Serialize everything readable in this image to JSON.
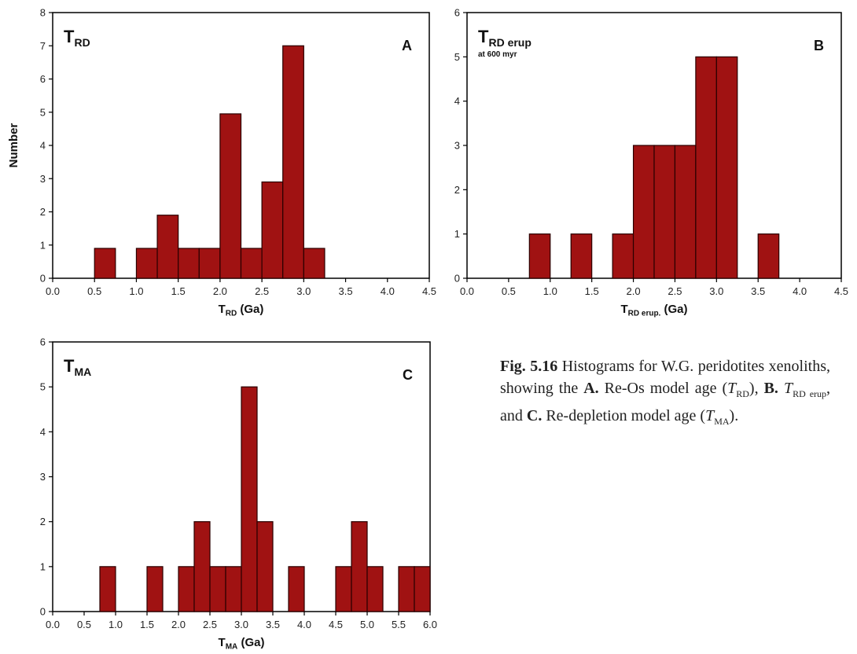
{
  "caption": {
    "figure_label": "Fig. 5.16",
    "text_1": "Histograms for W.G. peridotites xenoliths, showing the",
    "label_a": "A.",
    "text_2": "Re-Os model age (",
    "sym_trd": "T",
    "sub_trd": "RD",
    "text_3": "),",
    "label_b": "B.",
    "sym_erup": "T",
    "sub_erup": "RD erup",
    "text_4": ", and",
    "label_c": "C.",
    "text_5": "Re-depletion model age (",
    "sym_tma": "T",
    "sub_tma": "MA",
    "text_6": ")."
  },
  "chart_data": [
    {
      "type": "bar",
      "panel": "A",
      "title_main": "T",
      "title_sub": "RD",
      "title_note": "",
      "xlabel_main": "T",
      "xlabel_sub": "RD",
      "xlabel_unit": " (Ga)",
      "ylabel": "Number",
      "xlim": [
        0,
        4.5
      ],
      "ylim": [
        0,
        8
      ],
      "xticks": [
        "0.0",
        "0.5",
        "1.0",
        "1.5",
        "2.0",
        "2.5",
        "3.0",
        "3.5",
        "4.0",
        "4.5"
      ],
      "yticks": [
        "0",
        "1",
        "2",
        "3",
        "4",
        "5",
        "6",
        "7",
        "8"
      ],
      "bar_color": "#a01212",
      "bins": [
        {
          "x0": 0.5,
          "x1": 0.75,
          "value": 0.9
        },
        {
          "x0": 1.0,
          "x1": 1.25,
          "value": 0.9
        },
        {
          "x0": 1.25,
          "x1": 1.5,
          "value": 1.9
        },
        {
          "x0": 1.5,
          "x1": 1.75,
          "value": 0.9
        },
        {
          "x0": 1.75,
          "x1": 2.0,
          "value": 0.9
        },
        {
          "x0": 2.0,
          "x1": 2.25,
          "value": 4.95
        },
        {
          "x0": 2.25,
          "x1": 2.5,
          "value": 0.9
        },
        {
          "x0": 2.5,
          "x1": 2.75,
          "value": 2.9
        },
        {
          "x0": 2.75,
          "x1": 3.0,
          "value": 7.0
        },
        {
          "x0": 3.0,
          "x1": 3.25,
          "value": 0.9
        }
      ]
    },
    {
      "type": "bar",
      "panel": "B",
      "title_main": "T",
      "title_sub": "RD erup",
      "title_note": "at 600 myr",
      "xlabel_main": "T",
      "xlabel_sub": "RD erup.",
      "xlabel_unit": " (Ga)",
      "ylabel": "",
      "xlim": [
        0,
        4.5
      ],
      "ylim": [
        0,
        6
      ],
      "xticks": [
        "0.0",
        "0.5",
        "1.0",
        "1.5",
        "2.0",
        "2.5",
        "3.0",
        "3.5",
        "4.0",
        "4.5"
      ],
      "yticks": [
        "0",
        "1",
        "2",
        "3",
        "4",
        "5",
        "6"
      ],
      "bar_color": "#a01212",
      "bins": [
        {
          "x0": 0.75,
          "x1": 1.0,
          "value": 1.0
        },
        {
          "x0": 1.25,
          "x1": 1.5,
          "value": 1.0
        },
        {
          "x0": 1.75,
          "x1": 2.0,
          "value": 1.0
        },
        {
          "x0": 2.0,
          "x1": 2.25,
          "value": 3.0
        },
        {
          "x0": 2.25,
          "x1": 2.5,
          "value": 3.0
        },
        {
          "x0": 2.5,
          "x1": 2.75,
          "value": 3.0
        },
        {
          "x0": 2.75,
          "x1": 3.0,
          "value": 5.0
        },
        {
          "x0": 3.0,
          "x1": 3.25,
          "value": 5.0
        },
        {
          "x0": 3.5,
          "x1": 3.75,
          "value": 1.0
        }
      ]
    },
    {
      "type": "bar",
      "panel": "C",
      "title_main": "T",
      "title_sub": "MA",
      "title_note": "",
      "xlabel_main": "T",
      "xlabel_sub": "MA",
      "xlabel_unit": " (Ga)",
      "ylabel": "",
      "xlim": [
        0,
        6.0
      ],
      "ylim": [
        0,
        6
      ],
      "xticks": [
        "0.0",
        "0.5",
        "1.0",
        "1.5",
        "2.0",
        "2.5",
        "3.0",
        "3.5",
        "4.0",
        "4.5",
        "5.0",
        "5.5",
        "6.0"
      ],
      "yticks": [
        "0",
        "1",
        "2",
        "3",
        "4",
        "5",
        "6"
      ],
      "bar_color": "#a01212",
      "bins": [
        {
          "x0": 0.75,
          "x1": 1.0,
          "value": 1.0
        },
        {
          "x0": 1.5,
          "x1": 1.75,
          "value": 1.0
        },
        {
          "x0": 2.0,
          "x1": 2.25,
          "value": 1.0
        },
        {
          "x0": 2.25,
          "x1": 2.5,
          "value": 2.0
        },
        {
          "x0": 2.5,
          "x1": 2.75,
          "value": 1.0
        },
        {
          "x0": 2.75,
          "x1": 3.0,
          "value": 1.0
        },
        {
          "x0": 3.0,
          "x1": 3.25,
          "value": 5.0
        },
        {
          "x0": 3.25,
          "x1": 3.5,
          "value": 2.0
        },
        {
          "x0": 3.75,
          "x1": 4.0,
          "value": 1.0
        },
        {
          "x0": 4.5,
          "x1": 4.75,
          "value": 1.0
        },
        {
          "x0": 4.75,
          "x1": 5.0,
          "value": 2.0
        },
        {
          "x0": 5.0,
          "x1": 5.25,
          "value": 1.0
        },
        {
          "x0": 5.5,
          "x1": 5.75,
          "value": 1.0
        },
        {
          "x0": 5.75,
          "x1": 6.0,
          "value": 1.0
        }
      ]
    }
  ]
}
